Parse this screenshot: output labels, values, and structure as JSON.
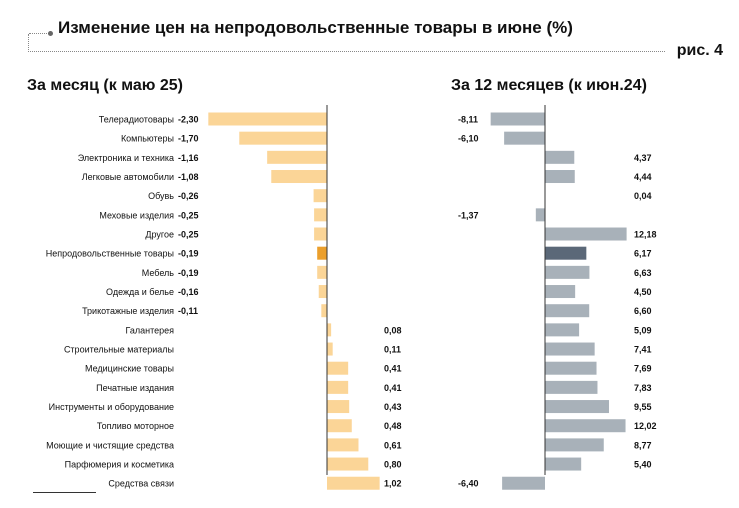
{
  "header": {
    "title": "Изменение цен на непродовольственные товары в июне (%)",
    "figure_label": "рис. 4"
  },
  "chart_data": [
    {
      "type": "bar",
      "orientation": "horizontal",
      "subtitle": "За месяц (к маю 25)",
      "categories": [
        "Телерадиотовары",
        "Компьютеры",
        "Электроника и техника",
        "Легковые автомобили",
        "Обувь",
        "Меховые изделия",
        "Другое",
        "Непродовольственные товары",
        "Мебель",
        "Одежда и белье",
        "Трикотажные изделия",
        "Галантерея",
        "Строительные материалы",
        "Медицинские товары",
        "Печатные издания",
        "Инструменты и оборудование",
        "Топливо моторное",
        "Моющие и чистящие средства",
        "Парфюмерия и косметика",
        "Средства связи"
      ],
      "values": [
        -2.3,
        -1.7,
        -1.16,
        -1.08,
        -0.26,
        -0.25,
        -0.25,
        -0.19,
        -0.19,
        -0.16,
        -0.11,
        0.08,
        0.11,
        0.41,
        0.41,
        0.43,
        0.48,
        0.61,
        0.8,
        1.02
      ],
      "labels": [
        "-2,30",
        "-1,70",
        "-1,16",
        "-1,08",
        "-0,26",
        "-0,25",
        "-0,25",
        "-0,19",
        "-0,19",
        "-0,16",
        "-0,11",
        "0,08",
        "0,11",
        "0,41",
        "0,41",
        "0,43",
        "0,48",
        "0,61",
        "0,80",
        "1,02"
      ],
      "highlight_index": 7,
      "colors": {
        "bar": "#fbd597",
        "highlight": "#eb9f2c"
      }
    },
    {
      "type": "bar",
      "orientation": "horizontal",
      "subtitle": "За 12 месяцев (к июн.24)",
      "values": [
        -8.11,
        -6.1,
        4.37,
        4.44,
        0.04,
        -1.37,
        12.18,
        6.17,
        6.63,
        4.5,
        6.6,
        5.09,
        7.41,
        7.69,
        7.83,
        9.55,
        12.02,
        8.77,
        5.4,
        -6.4
      ],
      "labels": [
        "-8,11",
        "-6,10",
        "4,37",
        "4,44",
        "0,04",
        "-1,37",
        "12,18",
        "6,17",
        "6,63",
        "4,50",
        "6,60",
        "5,09",
        "7,41",
        "7,69",
        "7,83",
        "9,55",
        "12,02",
        "8,77",
        "5,40",
        "-6,40"
      ],
      "highlight_index": 7,
      "colors": {
        "bar": "#a8b1b9",
        "highlight": "#5b6878"
      }
    }
  ]
}
